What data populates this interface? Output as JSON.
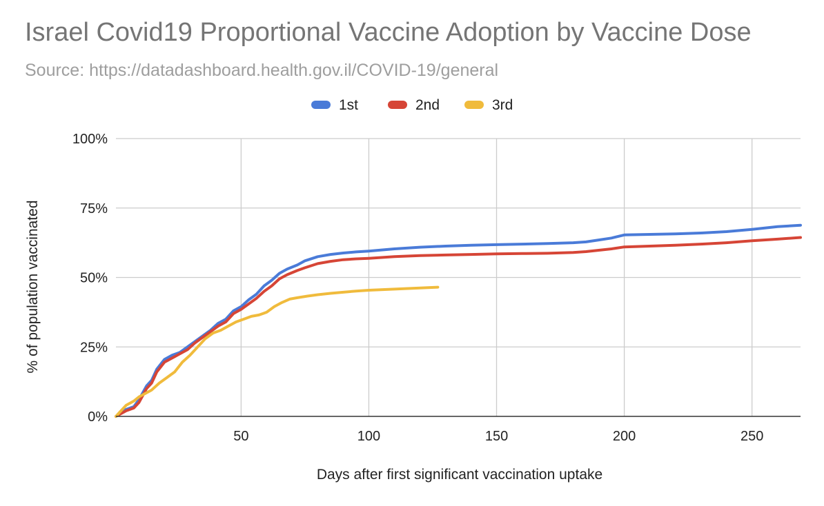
{
  "chart_data": {
    "type": "line",
    "title": "Israel Covid19 Proportional Vaccine Adoption by Vaccine Dose",
    "subtitle": "Source: https://datadashboard.health.gov.il/COVID-19/general",
    "xlabel": "Days after first significant vaccination uptake",
    "ylabel": "% of population vaccinated",
    "xlim": [
      1,
      269
    ],
    "ylim": [
      0,
      100
    ],
    "x_ticks": [
      50,
      100,
      150,
      200,
      250
    ],
    "y_ticks": [
      0,
      25,
      50,
      75,
      100
    ],
    "y_tick_labels": [
      "0%",
      "25%",
      "50%",
      "75%",
      "100%"
    ],
    "grid": true,
    "legend_position": "top-center",
    "series": [
      {
        "name": "1st",
        "color": "#4a7bd8",
        "points": [
          [
            1,
            0
          ],
          [
            3,
            1.5
          ],
          [
            5,
            2.5
          ],
          [
            8,
            3.5
          ],
          [
            10,
            6
          ],
          [
            13,
            11
          ],
          [
            15,
            13
          ],
          [
            17,
            17
          ],
          [
            20,
            20.5
          ],
          [
            23,
            22
          ],
          [
            26,
            23
          ],
          [
            29,
            25
          ],
          [
            32,
            27
          ],
          [
            35,
            29
          ],
          [
            38,
            31
          ],
          [
            41,
            33.5
          ],
          [
            44,
            35
          ],
          [
            47,
            38
          ],
          [
            50,
            39.5
          ],
          [
            53,
            42
          ],
          [
            56,
            44
          ],
          [
            59,
            47
          ],
          [
            62,
            49
          ],
          [
            65,
            51.5
          ],
          [
            68,
            53
          ],
          [
            72,
            54.5
          ],
          [
            75,
            56
          ],
          [
            80,
            57.5
          ],
          [
            85,
            58.3
          ],
          [
            90,
            58.8
          ],
          [
            95,
            59.2
          ],
          [
            100,
            59.5
          ],
          [
            110,
            60.3
          ],
          [
            120,
            60.9
          ],
          [
            130,
            61.3
          ],
          [
            140,
            61.6
          ],
          [
            150,
            61.8
          ],
          [
            160,
            62
          ],
          [
            170,
            62.2
          ],
          [
            180,
            62.5
          ],
          [
            185,
            62.8
          ],
          [
            190,
            63.5
          ],
          [
            195,
            64.2
          ],
          [
            200,
            65.3
          ],
          [
            210,
            65.5
          ],
          [
            220,
            65.7
          ],
          [
            230,
            66
          ],
          [
            240,
            66.5
          ],
          [
            250,
            67.3
          ],
          [
            255,
            67.8
          ],
          [
            260,
            68.3
          ],
          [
            269,
            68.8
          ]
        ]
      },
      {
        "name": "2nd",
        "color": "#d64536",
        "points": [
          [
            1,
            0
          ],
          [
            3,
            1
          ],
          [
            5,
            2
          ],
          [
            8,
            3
          ],
          [
            10,
            5
          ],
          [
            13,
            10
          ],
          [
            15,
            12
          ],
          [
            17,
            16
          ],
          [
            20,
            19.5
          ],
          [
            23,
            21
          ],
          [
            26,
            22.5
          ],
          [
            29,
            24
          ],
          [
            32,
            26.5
          ],
          [
            35,
            28.5
          ],
          [
            38,
            30.5
          ],
          [
            41,
            32.5
          ],
          [
            44,
            34
          ],
          [
            47,
            37
          ],
          [
            50,
            38.5
          ],
          [
            53,
            40.5
          ],
          [
            56,
            42.5
          ],
          [
            59,
            45
          ],
          [
            62,
            47
          ],
          [
            65,
            49.5
          ],
          [
            68,
            51
          ],
          [
            72,
            52.5
          ],
          [
            75,
            53.5
          ],
          [
            80,
            55
          ],
          [
            85,
            55.8
          ],
          [
            90,
            56.4
          ],
          [
            95,
            56.7
          ],
          [
            100,
            56.9
          ],
          [
            110,
            57.5
          ],
          [
            120,
            57.9
          ],
          [
            130,
            58.1
          ],
          [
            140,
            58.3
          ],
          [
            150,
            58.5
          ],
          [
            160,
            58.6
          ],
          [
            170,
            58.7
          ],
          [
            180,
            59
          ],
          [
            185,
            59.3
          ],
          [
            190,
            59.8
          ],
          [
            195,
            60.3
          ],
          [
            200,
            61
          ],
          [
            210,
            61.3
          ],
          [
            220,
            61.6
          ],
          [
            230,
            62
          ],
          [
            240,
            62.5
          ],
          [
            250,
            63.2
          ],
          [
            260,
            63.8
          ],
          [
            269,
            64.4
          ]
        ]
      },
      {
        "name": "3rd",
        "color": "#f0bb3c",
        "points": [
          [
            1,
            0
          ],
          [
            3,
            2
          ],
          [
            5,
            4
          ],
          [
            8,
            5.5
          ],
          [
            10,
            7
          ],
          [
            13,
            8.5
          ],
          [
            15,
            9.5
          ],
          [
            18,
            12
          ],
          [
            21,
            14
          ],
          [
            24,
            16
          ],
          [
            27,
            19.5
          ],
          [
            30,
            22
          ],
          [
            33,
            25
          ],
          [
            36,
            28
          ],
          [
            39,
            30
          ],
          [
            42,
            31
          ],
          [
            45,
            32.5
          ],
          [
            48,
            34
          ],
          [
            51,
            35
          ],
          [
            54,
            36
          ],
          [
            57,
            36.5
          ],
          [
            60,
            37.5
          ],
          [
            63,
            39.5
          ],
          [
            66,
            41
          ],
          [
            69,
            42.2
          ],
          [
            72,
            42.7
          ],
          [
            76,
            43.3
          ],
          [
            80,
            43.8
          ],
          [
            85,
            44.3
          ],
          [
            90,
            44.7
          ],
          [
            95,
            45.1
          ],
          [
            100,
            45.4
          ],
          [
            110,
            45.8
          ],
          [
            120,
            46.2
          ],
          [
            127,
            46.5
          ]
        ]
      }
    ]
  }
}
